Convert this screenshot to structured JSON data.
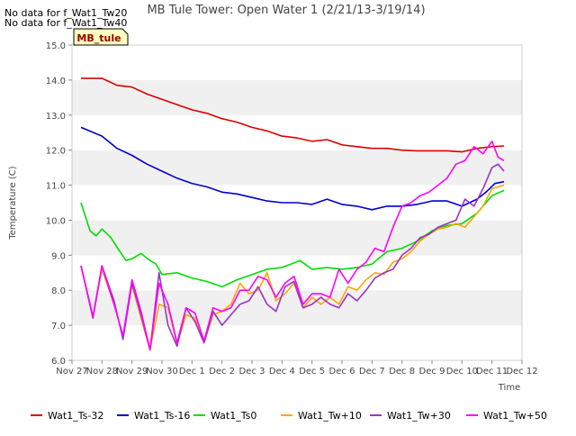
{
  "chart_data": {
    "type": "line",
    "title": "MB Tule Tower: Open Water 1 (2/21/13-3/19/14)",
    "xlabel": "Time",
    "ylabel": "Temperature (C)",
    "ylim": [
      6.0,
      15.0
    ],
    "xlim": [
      0,
      15
    ],
    "yticks": [
      6.0,
      7.0,
      8.0,
      9.0,
      10.0,
      11.0,
      12.0,
      13.0,
      14.0,
      15.0
    ],
    "xticks": [
      {
        "value": 0,
        "label": "Nov 27"
      },
      {
        "value": 1,
        "label": "Nov 28"
      },
      {
        "value": 2,
        "label": "Nov 29"
      },
      {
        "value": 3,
        "label": "Nov 30"
      },
      {
        "value": 4,
        "label": "Dec 1"
      },
      {
        "value": 5,
        "label": "Dec 2"
      },
      {
        "value": 6,
        "label": "Dec 3"
      },
      {
        "value": 7,
        "label": "Dec 4"
      },
      {
        "value": 8,
        "label": "Dec 5"
      },
      {
        "value": 9,
        "label": "Dec 6"
      },
      {
        "value": 10,
        "label": "Dec 7"
      },
      {
        "value": 11,
        "label": "Dec 8"
      },
      {
        "value": 12,
        "label": "Dec 9"
      },
      {
        "value": 13,
        "label": "Dec 10"
      },
      {
        "value": 14,
        "label": "Dec 11"
      },
      {
        "value": 15,
        "label": "Dec 12"
      }
    ],
    "no_data_notes": [
      "No data for f_Wat1_Tw20",
      "No data for f_Wat1_Tw40"
    ],
    "site_badge": "MB_tule",
    "legend_position": "bottom",
    "series": [
      {
        "name": "Wat1_Ts-32",
        "color": "#dd0000",
        "x": [
          0.3,
          1.0,
          1.5,
          2.0,
          2.5,
          3.0,
          3.5,
          4.0,
          4.5,
          5.0,
          5.5,
          6.0,
          6.5,
          7.0,
          7.5,
          8.0,
          8.5,
          9.0,
          9.5,
          10.0,
          10.5,
          11.0,
          11.5,
          12.0,
          12.5,
          13.0,
          13.5,
          14.0,
          14.4
        ],
        "y": [
          14.05,
          14.05,
          13.85,
          13.8,
          13.6,
          13.45,
          13.3,
          13.15,
          13.05,
          12.9,
          12.8,
          12.65,
          12.55,
          12.4,
          12.35,
          12.25,
          12.3,
          12.15,
          12.1,
          12.05,
          12.05,
          12.0,
          11.98,
          11.98,
          11.98,
          11.95,
          12.05,
          12.1,
          12.12
        ]
      },
      {
        "name": "Wat1_Ts-16",
        "color": "#0000cc",
        "x": [
          0.3,
          1.0,
          1.5,
          2.0,
          2.5,
          3.0,
          3.5,
          4.0,
          4.5,
          5.0,
          5.5,
          6.0,
          6.5,
          7.0,
          7.5,
          8.0,
          8.5,
          9.0,
          9.5,
          10.0,
          10.5,
          11.0,
          11.5,
          12.0,
          12.5,
          13.0,
          13.5,
          13.8,
          14.1,
          14.4
        ],
        "y": [
          12.65,
          12.4,
          12.05,
          11.85,
          11.6,
          11.4,
          11.2,
          11.05,
          10.95,
          10.8,
          10.75,
          10.65,
          10.55,
          10.5,
          10.5,
          10.45,
          10.6,
          10.45,
          10.4,
          10.3,
          10.4,
          10.4,
          10.45,
          10.55,
          10.55,
          10.4,
          10.6,
          10.8,
          11.05,
          11.1
        ]
      },
      {
        "name": "Wat1_Ts0",
        "color": "#00dd00",
        "x": [
          0.3,
          0.6,
          0.8,
          1.0,
          1.3,
          1.6,
          1.8,
          2.0,
          2.3,
          2.6,
          2.8,
          3.0,
          3.5,
          4.0,
          4.5,
          5.0,
          5.5,
          6.0,
          6.5,
          7.0,
          7.3,
          7.6,
          8.0,
          8.5,
          9.0,
          9.5,
          10.0,
          10.5,
          11.0,
          11.5,
          12.0,
          12.5,
          13.0,
          13.5,
          14.0,
          14.4
        ],
        "y": [
          10.5,
          9.7,
          9.55,
          9.75,
          9.5,
          9.1,
          8.85,
          8.9,
          9.05,
          8.85,
          8.75,
          8.45,
          8.5,
          8.35,
          8.25,
          8.1,
          8.3,
          8.45,
          8.6,
          8.65,
          8.75,
          8.85,
          8.6,
          8.65,
          8.6,
          8.65,
          8.75,
          9.1,
          9.2,
          9.4,
          9.7,
          9.85,
          9.9,
          10.2,
          10.7,
          10.85
        ]
      },
      {
        "name": "Wat1_Tw+10",
        "color": "#ffa500",
        "x": [
          0.3,
          0.7,
          1.0,
          1.4,
          1.7,
          2.0,
          2.3,
          2.6,
          2.9,
          3.2,
          3.5,
          3.8,
          4.1,
          4.4,
          4.7,
          5.0,
          5.3,
          5.6,
          5.9,
          6.2,
          6.5,
          6.8,
          7.1,
          7.4,
          7.7,
          8.0,
          8.3,
          8.6,
          8.9,
          9.2,
          9.5,
          9.8,
          10.1,
          10.4,
          10.7,
          11.0,
          11.3,
          11.6,
          11.9,
          12.2,
          12.5,
          12.8,
          13.1,
          13.4,
          13.7,
          14.0,
          14.2,
          14.4
        ],
        "y": [
          8.7,
          7.25,
          8.6,
          7.6,
          6.7,
          8.15,
          7.2,
          6.3,
          7.6,
          7.5,
          6.45,
          7.3,
          7.2,
          6.5,
          7.3,
          7.4,
          7.6,
          8.2,
          7.9,
          8.0,
          8.5,
          7.7,
          7.9,
          8.2,
          7.5,
          7.8,
          7.6,
          7.8,
          7.6,
          8.1,
          8.0,
          8.3,
          8.5,
          8.45,
          8.8,
          8.9,
          9.1,
          9.4,
          9.6,
          9.75,
          9.8,
          9.9,
          9.8,
          10.1,
          10.4,
          10.9,
          10.95,
          11.0
        ]
      },
      {
        "name": "Wat1_Tw+30",
        "color": "#9933cc",
        "x": [
          0.3,
          0.7,
          1.0,
          1.4,
          1.7,
          2.0,
          2.3,
          2.6,
          2.9,
          3.2,
          3.5,
          3.8,
          4.1,
          4.4,
          4.7,
          5.0,
          5.3,
          5.6,
          5.9,
          6.2,
          6.5,
          6.8,
          7.1,
          7.4,
          7.7,
          8.0,
          8.3,
          8.6,
          8.9,
          9.2,
          9.5,
          9.8,
          10.1,
          10.4,
          10.7,
          11.0,
          11.3,
          11.6,
          11.9,
          12.2,
          12.5,
          12.8,
          13.1,
          13.4,
          13.7,
          14.0,
          14.2,
          14.4
        ],
        "y": [
          8.7,
          7.2,
          8.7,
          7.7,
          6.6,
          8.2,
          7.3,
          6.3,
          8.5,
          7.0,
          6.4,
          7.5,
          7.1,
          6.5,
          7.4,
          7.0,
          7.3,
          7.6,
          7.7,
          8.1,
          7.6,
          7.4,
          8.1,
          8.25,
          7.5,
          7.6,
          7.8,
          7.6,
          7.5,
          7.9,
          7.7,
          8.0,
          8.35,
          8.5,
          8.6,
          9.0,
          9.2,
          9.5,
          9.6,
          9.8,
          9.9,
          10.0,
          10.6,
          10.4,
          10.9,
          11.5,
          11.6,
          11.4
        ]
      },
      {
        "name": "Wat1_Tw+50",
        "color": "#ff00ff",
        "x": [
          0.3,
          0.7,
          1.0,
          1.4,
          1.7,
          2.0,
          2.3,
          2.6,
          2.9,
          3.2,
          3.5,
          3.8,
          4.1,
          4.4,
          4.7,
          5.0,
          5.3,
          5.6,
          5.9,
          6.2,
          6.5,
          6.8,
          7.1,
          7.4,
          7.7,
          8.0,
          8.3,
          8.6,
          8.9,
          9.2,
          9.5,
          9.8,
          10.1,
          10.4,
          10.7,
          11.0,
          11.3,
          11.6,
          11.9,
          12.2,
          12.5,
          12.8,
          13.1,
          13.4,
          13.7,
          14.0,
          14.2,
          14.4
        ],
        "y": [
          8.7,
          7.25,
          8.7,
          7.6,
          6.7,
          8.3,
          7.4,
          6.3,
          8.2,
          7.6,
          6.5,
          7.5,
          7.35,
          6.55,
          7.5,
          7.4,
          7.5,
          8.0,
          8.0,
          8.4,
          8.3,
          7.8,
          8.2,
          8.4,
          7.6,
          7.9,
          7.9,
          7.8,
          8.6,
          8.2,
          8.6,
          8.8,
          9.2,
          9.1,
          9.8,
          10.4,
          10.5,
          10.7,
          10.8,
          11.0,
          11.2,
          11.6,
          11.7,
          12.1,
          11.9,
          12.25,
          11.8,
          11.7
        ]
      }
    ]
  }
}
